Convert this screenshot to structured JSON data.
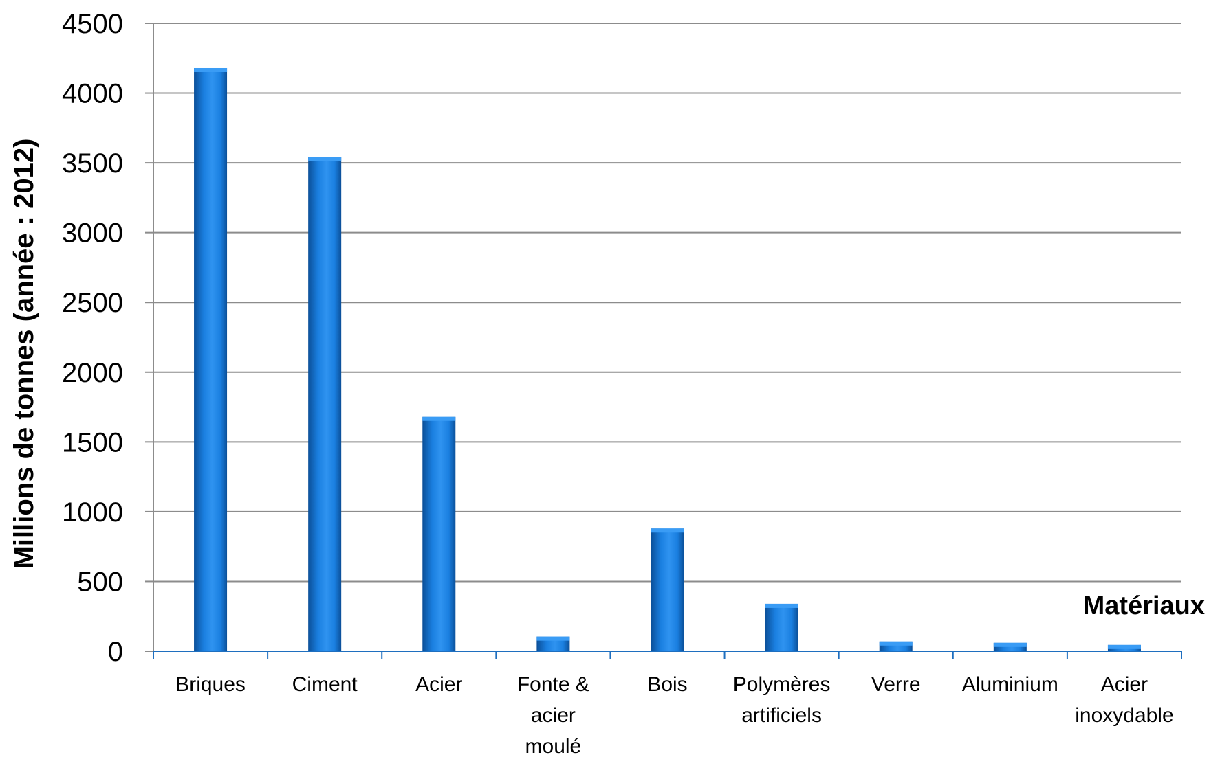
{
  "chart_data": {
    "type": "bar",
    "title": "",
    "xlabel": "Matériaux",
    "ylabel": "Millions de tonnes (année : 2012)",
    "ylim": [
      0,
      4500
    ],
    "yticks": [
      "0",
      "500",
      "1000",
      "1500",
      "2000",
      "2500",
      "3000",
      "3500",
      "4000",
      "4500"
    ],
    "grid": true,
    "legend": "none",
    "categories": [
      [
        "Briques"
      ],
      [
        "Ciment"
      ],
      [
        "Acier"
      ],
      [
        "Fonte &",
        "acier",
        "moulé"
      ],
      [
        "Bois"
      ],
      [
        "Polymères",
        "artificiels"
      ],
      [
        "Verre"
      ],
      [
        "Aluminium"
      ],
      [
        "Acier",
        "inoxydable"
      ]
    ],
    "values": [
      4180,
      3540,
      1680,
      105,
      880,
      340,
      70,
      60,
      45
    ],
    "colors": {
      "bar": "#1a7fe0",
      "bar_dark": "#0d5aa8",
      "bar_light": "#3a9cf5",
      "grid": "#8c8c8c",
      "axis": "#1f6fbf"
    }
  }
}
